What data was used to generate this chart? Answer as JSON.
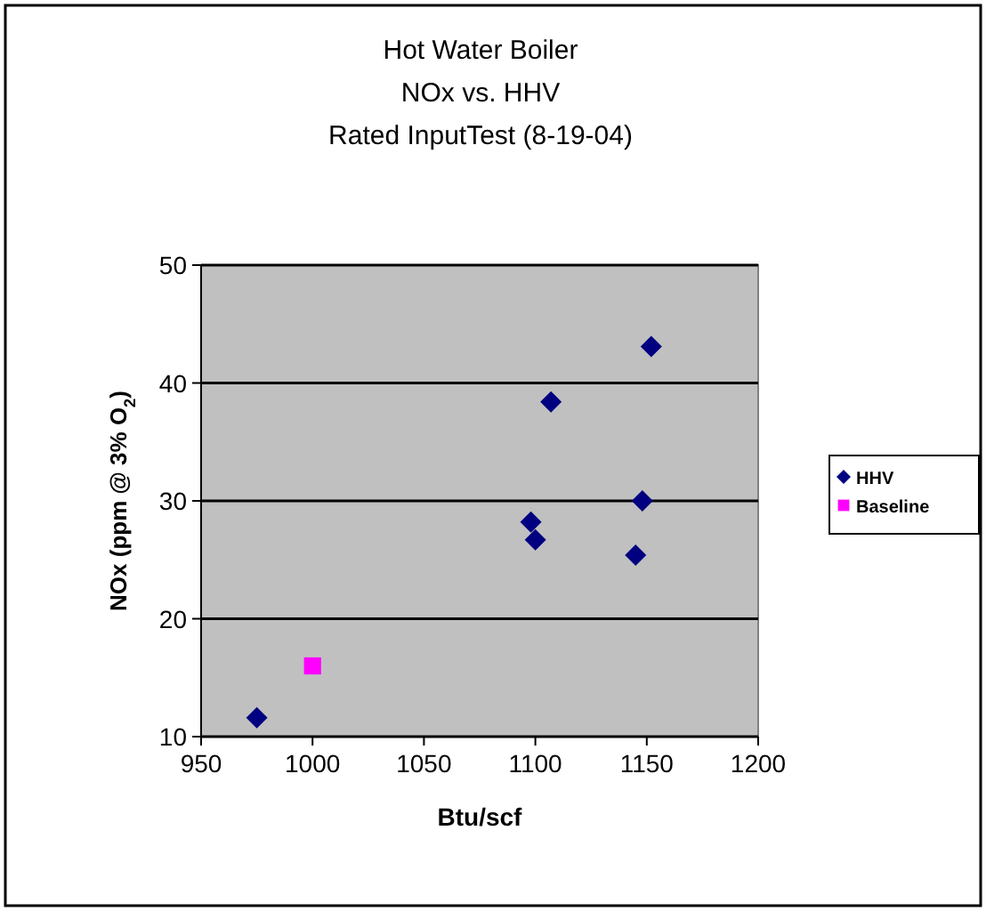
{
  "chart_data": {
    "type": "scatter",
    "title": "Hot Water Boiler\nNOx vs. HHV\nRated InputTest (8-19-04)",
    "xlabel": "Btu/scf",
    "ylabel": "NOx (ppm @ 3% O$_{2}$)",
    "xlim": [
      950,
      1200
    ],
    "xticks": [
      950,
      1000,
      1050,
      1100,
      1150,
      1200
    ],
    "ylim": [
      10,
      50
    ],
    "yticks": [
      10,
      20,
      30,
      40,
      50
    ],
    "grid": "y",
    "legend": "right",
    "series": [
      {
        "name": "HHV",
        "color": "#000080",
        "marker": "diamond",
        "x": [
          975,
          1098,
          1100,
          1107,
          1145,
          1148,
          1152
        ],
        "values": [
          11.6,
          28.2,
          26.7,
          38.4,
          25.4,
          30.0,
          43.1
        ]
      },
      {
        "name": "Baseline",
        "color": "#ff00ff",
        "marker": "square",
        "x": [
          1000
        ],
        "values": [
          16.0
        ]
      }
    ]
  }
}
